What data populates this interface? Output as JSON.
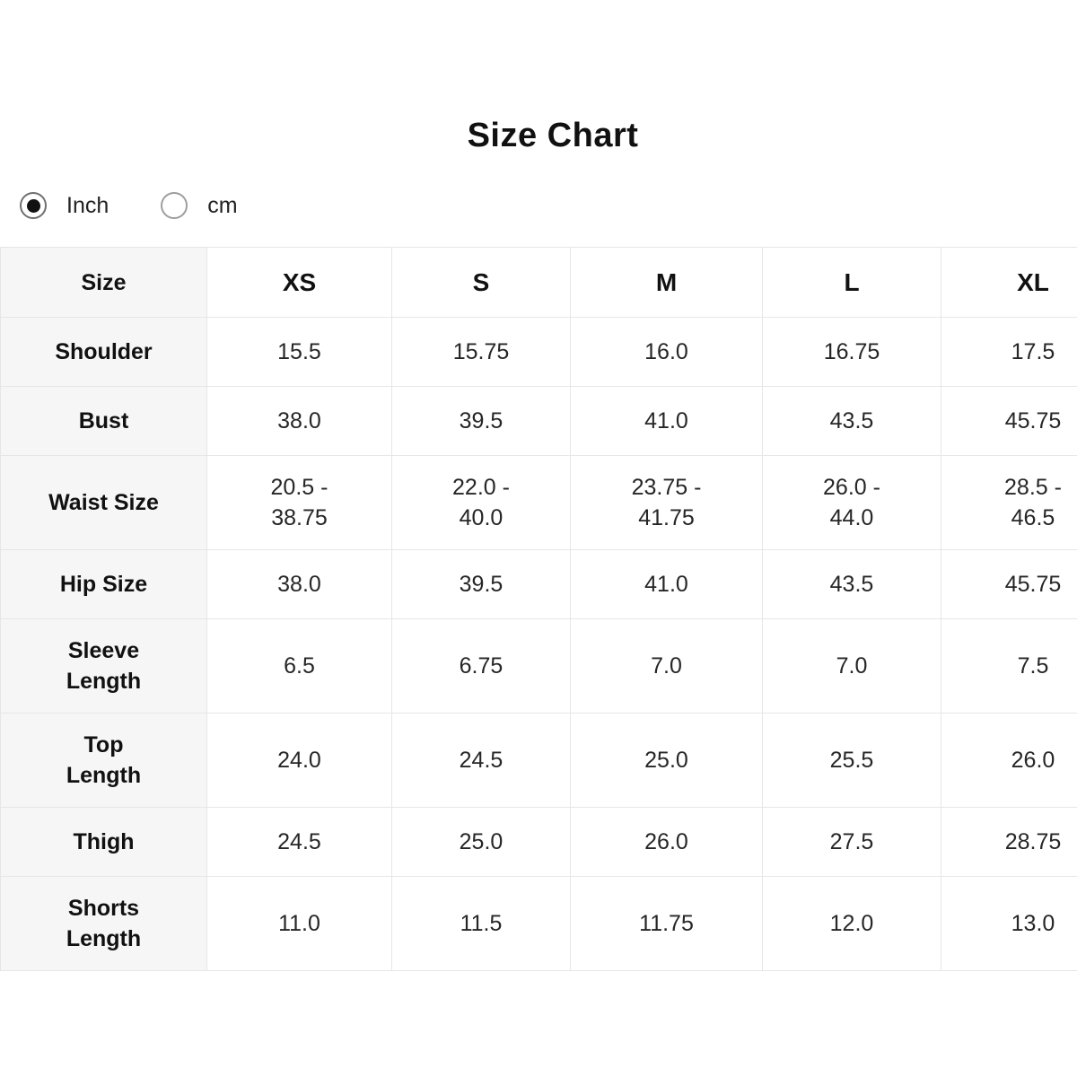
{
  "page": {
    "title": "Size Chart"
  },
  "unit_toggle": {
    "options": [
      {
        "label": "Inch",
        "selected": true
      },
      {
        "label": "cm",
        "selected": false
      }
    ]
  },
  "table": {
    "header": [
      "Size",
      "XS",
      "S",
      "M",
      "L",
      "XL"
    ],
    "rows": [
      {
        "label": "Shoulder",
        "values": [
          "15.5",
          "15.75",
          "16.0",
          "16.75",
          "17.5"
        ]
      },
      {
        "label": "Bust",
        "values": [
          "38.0",
          "39.5",
          "41.0",
          "43.5",
          "45.75"
        ]
      },
      {
        "label": "Waist Size",
        "values": [
          "20.5 -\n38.75",
          "22.0 -\n40.0",
          "23.75 -\n41.75",
          "26.0 -\n44.0",
          "28.5 -\n46.5"
        ]
      },
      {
        "label": "Hip Size",
        "values": [
          "38.0",
          "39.5",
          "41.0",
          "43.5",
          "45.75"
        ]
      },
      {
        "label": "Sleeve\nLength",
        "values": [
          "6.5",
          "6.75",
          "7.0",
          "7.0",
          "7.5"
        ]
      },
      {
        "label": "Top\nLength",
        "values": [
          "24.0",
          "24.5",
          "25.0",
          "25.5",
          "26.0"
        ]
      },
      {
        "label": "Thigh",
        "values": [
          "24.5",
          "25.0",
          "26.0",
          "27.5",
          "28.75"
        ]
      },
      {
        "label": "Shorts\nLength",
        "values": [
          "11.0",
          "11.5",
          "11.75",
          "12.0",
          "13.0"
        ]
      }
    ]
  },
  "colors": {
    "label_column_bg": "#f6f6f6",
    "grid_border": "#e6e6e6",
    "radio_selected_dot": "#111111",
    "text": "#1d1d1d"
  }
}
